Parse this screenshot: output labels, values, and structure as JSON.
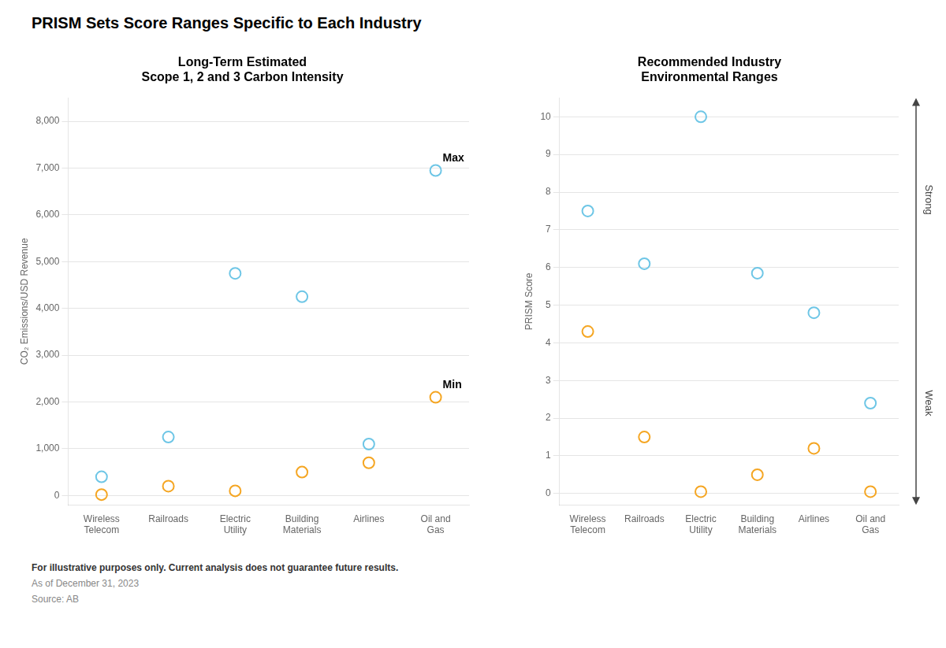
{
  "title": "PRISM Sets Score Ranges Specific to Each Industry",
  "annotations": [
    "For illustrative purposes only. Current analysis does not guarantee future results.",
    "As of December 31, 2023",
    "Source: AB"
  ],
  "chart_data": [
    {
      "type": "scatter",
      "title": "Long-Term Estimated\nScope 1, 2 and 3 Carbon Intensity",
      "categories": [
        "Wireless\nTelecom",
        "Railroads",
        "Electric\nUtility",
        "Building\nMaterials",
        "Airlines",
        "Oil and\nGas"
      ],
      "series": [
        {
          "color": "#6EC6E6",
          "marker": "circle",
          "values": [
            400,
            1250,
            4750,
            4250,
            1100,
            6950
          ]
        },
        {
          "color": "#F5A623",
          "marker": "circle",
          "values": [
            20,
            200,
            100,
            500,
            700,
            2100
          ]
        }
      ],
      "ylabel": "CO₂ Emissions/USD Revenue",
      "ylim": [
        -200,
        8500
      ],
      "yticks": [
        0,
        {
          "value": 1000,
          "label": "1,000"
        },
        {
          "value": 2000,
          "label": "2,000"
        },
        {
          "value": 3000,
          "label": "3,000"
        },
        {
          "value": 4000,
          "label": "4,000"
        },
        {
          "value": 5000,
          "label": "5,000"
        },
        {
          "value": 6000,
          "label": "6,000"
        },
        {
          "value": 7000,
          "label": "7,000"
        },
        {
          "value": 8000,
          "label": "8,000"
        }
      ],
      "grid": true,
      "annotations": [
        "Max",
        "Min"
      ]
    },
    {
      "type": "scatter",
      "title": "Recommended Industry\nEnvironmental Ranges",
      "categories": [
        "Wireless\nTelecom",
        "Railroads",
        "Electric\nUtility",
        "Building\nMaterials",
        "Airlines",
        "Oil and\nGas"
      ],
      "series": [
        {
          "color": "#6EC6E6",
          "marker": "circle",
          "values": [
            7.5,
            6.1,
            10.0,
            5.85,
            4.8,
            2.4
          ]
        },
        {
          "color": "#F5A623",
          "marker": "circle",
          "values": [
            4.3,
            1.5,
            0.05,
            0.5,
            1.2,
            0.05
          ]
        }
      ],
      "ylabel": "PRISM Score",
      "ylim": [
        -0.3,
        10.5
      ],
      "yticks": [
        0,
        1,
        2,
        3,
        4,
        5,
        6,
        7,
        8,
        9,
        10
      ],
      "grid": true,
      "annotations": [
        "Strong",
        "Weak"
      ]
    }
  ]
}
